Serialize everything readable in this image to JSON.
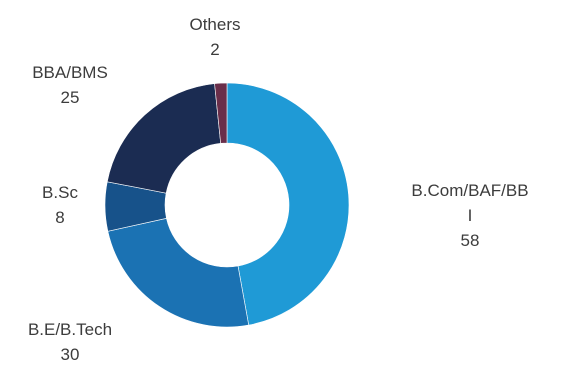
{
  "chart_data": {
    "type": "pie",
    "variant": "donut",
    "title": "",
    "categories": [
      "B.Com/BAF/BBI",
      "B.E/B.Tech",
      "B.Sc",
      "BBA/BMS",
      "Others"
    ],
    "values": [
      58,
      30,
      8,
      25,
      2
    ],
    "labels": [
      {
        "name_lines": [
          "B.Com/BAF/BB",
          "I"
        ],
        "value": "58"
      },
      {
        "name_lines": [
          "B.E/B.Tech"
        ],
        "value": "30"
      },
      {
        "name_lines": [
          "B.Sc"
        ],
        "value": "8"
      },
      {
        "name_lines": [
          "BBA/BMS"
        ],
        "value": "25"
      },
      {
        "name_lines": [
          "Others"
        ],
        "value": "2"
      }
    ],
    "colors": [
      "#1f9ad6",
      "#1b72b3",
      "#17528a",
      "#1b2c52",
      "#6a2e4a"
    ],
    "start_angle_deg": 0,
    "direction": "clockwise",
    "legend": "none",
    "data_labels": "outside"
  }
}
